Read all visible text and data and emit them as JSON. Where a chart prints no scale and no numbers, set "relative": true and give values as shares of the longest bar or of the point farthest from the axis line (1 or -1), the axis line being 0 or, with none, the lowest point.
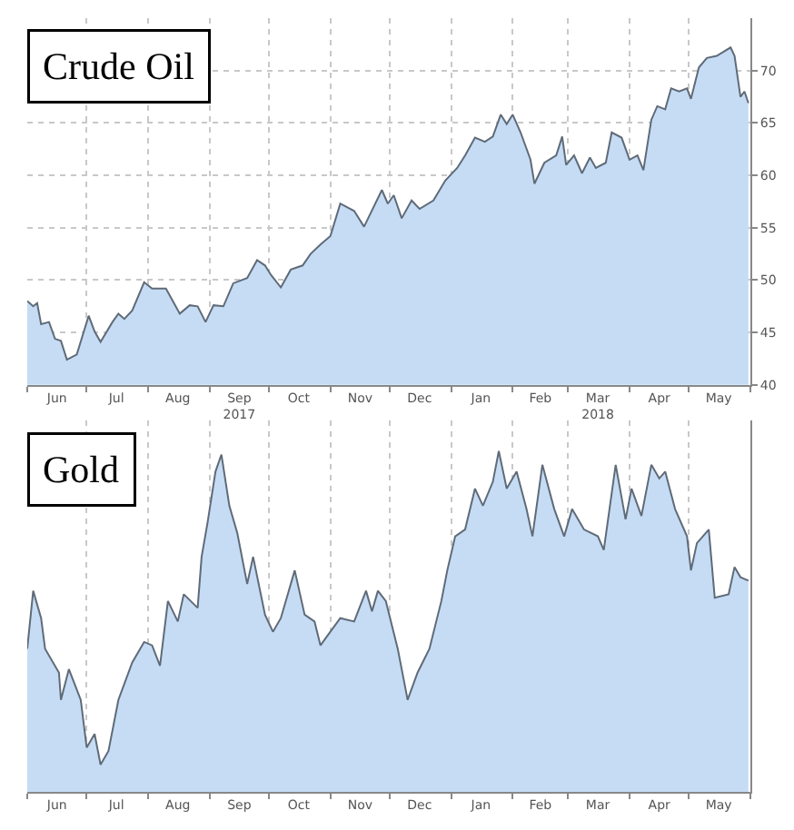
{
  "chart_data": [
    {
      "type": "area",
      "title": "Crude Oil",
      "xlim": [
        "2017-06-01",
        "2018-06-01"
      ],
      "ylim": [
        40,
        75
      ],
      "yticks": [
        40,
        45,
        50,
        55,
        60,
        65,
        70
      ],
      "xticks": [
        {
          "value": "2017-06-16",
          "label": "Jun"
        },
        {
          "value": "2017-07-16",
          "label": "Jul"
        },
        {
          "value": "2017-08-16",
          "label": "Aug"
        },
        {
          "value": "2017-09-16",
          "label": "Sep\n2017"
        },
        {
          "value": "2017-10-16",
          "label": "Oct"
        },
        {
          "value": "2017-11-16",
          "label": "Nov"
        },
        {
          "value": "2017-12-16",
          "label": "Dec"
        },
        {
          "value": "2018-01-16",
          "label": "Jan"
        },
        {
          "value": "2018-02-15",
          "label": "Feb"
        },
        {
          "value": "2018-03-16",
          "label": "Mar\n2018"
        },
        {
          "value": "2018-04-16",
          "label": "Apr"
        },
        {
          "value": "2018-05-16",
          "label": "May"
        }
      ],
      "grid": true,
      "series": [
        {
          "color": "#c6dcf5",
          "x": [
            "2017-06-01",
            "2017-06-04",
            "2017-06-06",
            "2017-06-08",
            "2017-06-12",
            "2017-06-15",
            "2017-06-18",
            "2017-06-21",
            "2017-06-26",
            "2017-07-02",
            "2017-07-05",
            "2017-07-08",
            "2017-07-14",
            "2017-07-17",
            "2017-07-20",
            "2017-07-24",
            "2017-07-30",
            "2017-08-03",
            "2017-08-10",
            "2017-08-17",
            "2017-08-22",
            "2017-08-26",
            "2017-08-30",
            "2017-09-03",
            "2017-09-08",
            "2017-09-13",
            "2017-09-20",
            "2017-09-25",
            "2017-09-29",
            "2017-10-02",
            "2017-10-07",
            "2017-10-12",
            "2017-10-18",
            "2017-10-22",
            "2017-10-27",
            "2017-11-01",
            "2017-11-06",
            "2017-11-13",
            "2017-11-18",
            "2017-11-27",
            "2017-11-30",
            "2017-12-03",
            "2017-12-07",
            "2017-12-12",
            "2017-12-16",
            "2017-12-23",
            "2017-12-29",
            "2018-01-04",
            "2018-01-08",
            "2018-01-13",
            "2018-01-18",
            "2018-01-22",
            "2018-01-26",
            "2018-01-29",
            "2018-02-01",
            "2018-02-05",
            "2018-02-10",
            "2018-02-12",
            "2018-02-17",
            "2018-02-23",
            "2018-02-26",
            "2018-02-28",
            "2018-03-04",
            "2018-03-08",
            "2018-03-12",
            "2018-03-15",
            "2018-03-20",
            "2018-03-23",
            "2018-03-28",
            "2018-04-01",
            "2018-04-05",
            "2018-04-08",
            "2018-04-12",
            "2018-04-15",
            "2018-04-19",
            "2018-04-22",
            "2018-04-26",
            "2018-04-30",
            "2018-05-02",
            "2018-05-06",
            "2018-05-10",
            "2018-05-15",
            "2018-05-22",
            "2018-05-24",
            "2018-05-27",
            "2018-05-29",
            "2018-05-31"
          ],
          "values": [
            48.0,
            47.5,
            47.8,
            45.8,
            46.0,
            44.4,
            44.2,
            42.4,
            42.9,
            46.6,
            45.1,
            44.1,
            46.0,
            46.8,
            46.3,
            47.1,
            49.8,
            49.2,
            49.2,
            46.8,
            47.6,
            47.5,
            46.0,
            47.6,
            47.5,
            49.7,
            50.2,
            51.9,
            51.4,
            50.5,
            49.3,
            51.0,
            51.4,
            52.5,
            53.4,
            54.2,
            57.3,
            56.6,
            55.1,
            58.6,
            57.3,
            58.1,
            55.9,
            57.6,
            56.8,
            57.6,
            59.5,
            60.7,
            61.9,
            63.6,
            63.2,
            63.7,
            65.8,
            64.9,
            65.8,
            64.1,
            61.5,
            59.2,
            61.2,
            61.9,
            63.7,
            61.0,
            61.9,
            60.2,
            61.7,
            60.7,
            61.2,
            64.1,
            63.6,
            61.5,
            61.9,
            60.5,
            65.3,
            66.6,
            66.3,
            68.3,
            68.0,
            68.3,
            67.3,
            70.3,
            71.2,
            71.4,
            72.2,
            71.4,
            67.5,
            68.0,
            66.9
          ]
        }
      ]
    },
    {
      "type": "area",
      "title": "Gold",
      "relative": true,
      "tick_labels": "x",
      "xlim": [
        "2017-06-01",
        "2018-06-01"
      ],
      "xticks": [
        {
          "value": "2017-06-16",
          "label": "Jun"
        },
        {
          "value": "2017-07-16",
          "label": "Jul"
        },
        {
          "value": "2017-08-16",
          "label": "Aug"
        },
        {
          "value": "2017-09-16",
          "label": "Sep"
        },
        {
          "value": "2017-10-16",
          "label": "Oct"
        },
        {
          "value": "2017-11-16",
          "label": "Nov"
        },
        {
          "value": "2017-12-16",
          "label": "Dec"
        },
        {
          "value": "2018-01-16",
          "label": "Jan"
        },
        {
          "value": "2018-02-15",
          "label": "Feb"
        },
        {
          "value": "2018-03-16",
          "label": "Mar"
        },
        {
          "value": "2018-04-16",
          "label": "Apr"
        },
        {
          "value": "2018-05-16",
          "label": "May"
        }
      ],
      "grid": "x",
      "series": [
        {
          "color": "#c6dcf5",
          "x": [
            "2017-06-01",
            "2017-06-04",
            "2017-06-08",
            "2017-06-10",
            "2017-06-17",
            "2017-06-18",
            "2017-06-22",
            "2017-06-26",
            "2017-06-28",
            "2017-07-01",
            "2017-07-05",
            "2017-07-08",
            "2017-07-12",
            "2017-07-17",
            "2017-07-24",
            "2017-07-30",
            "2017-08-03",
            "2017-08-07",
            "2017-08-11",
            "2017-08-16",
            "2017-08-19",
            "2017-08-26",
            "2017-08-28",
            "2017-08-31",
            "2017-09-04",
            "2017-09-07",
            "2017-09-11",
            "2017-09-15",
            "2017-09-20",
            "2017-09-23",
            "2017-09-29",
            "2017-10-03",
            "2017-10-07",
            "2017-10-14",
            "2017-10-19",
            "2017-10-24",
            "2017-10-27",
            "2017-11-01",
            "2017-11-06",
            "2017-11-13",
            "2017-11-19",
            "2017-11-22",
            "2017-11-25",
            "2017-11-29",
            "2017-12-05",
            "2017-12-10",
            "2017-12-15",
            "2017-12-21",
            "2017-12-27",
            "2017-12-30",
            "2018-01-03",
            "2018-01-08",
            "2018-01-13",
            "2018-01-17",
            "2018-01-22",
            "2018-01-25",
            "2018-01-29",
            "2018-02-03",
            "2018-02-08",
            "2018-02-11",
            "2018-02-16",
            "2018-02-22",
            "2018-02-27",
            "2018-03-03",
            "2018-03-09",
            "2018-03-16",
            "2018-03-19",
            "2018-03-25",
            "2018-03-30",
            "2018-04-02",
            "2018-04-07",
            "2018-04-12",
            "2018-04-16",
            "2018-04-19",
            "2018-04-24",
            "2018-04-30",
            "2018-05-02",
            "2018-05-05",
            "2018-05-11",
            "2018-05-14",
            "2018-05-21",
            "2018-05-24",
            "2018-05-27",
            "2018-05-31"
          ],
          "values": [
            0.42,
            0.59,
            0.51,
            0.42,
            0.35,
            0.27,
            0.36,
            0.3,
            0.27,
            0.13,
            0.17,
            0.08,
            0.12,
            0.27,
            0.38,
            0.44,
            0.43,
            0.37,
            0.56,
            0.5,
            0.58,
            0.54,
            0.69,
            0.79,
            0.94,
            0.99,
            0.84,
            0.76,
            0.61,
            0.69,
            0.52,
            0.47,
            0.51,
            0.65,
            0.52,
            0.5,
            0.43,
            0.47,
            0.51,
            0.5,
            0.59,
            0.53,
            0.59,
            0.56,
            0.42,
            0.27,
            0.35,
            0.42,
            0.56,
            0.65,
            0.75,
            0.77,
            0.89,
            0.84,
            0.91,
            1.0,
            0.89,
            0.94,
            0.83,
            0.75,
            0.96,
            0.83,
            0.75,
            0.83,
            0.77,
            0.75,
            0.71,
            0.96,
            0.8,
            0.89,
            0.81,
            0.96,
            0.92,
            0.94,
            0.83,
            0.75,
            0.65,
            0.73,
            0.77,
            0.57,
            0.58,
            0.66,
            0.63,
            0.62
          ]
        }
      ]
    }
  ]
}
